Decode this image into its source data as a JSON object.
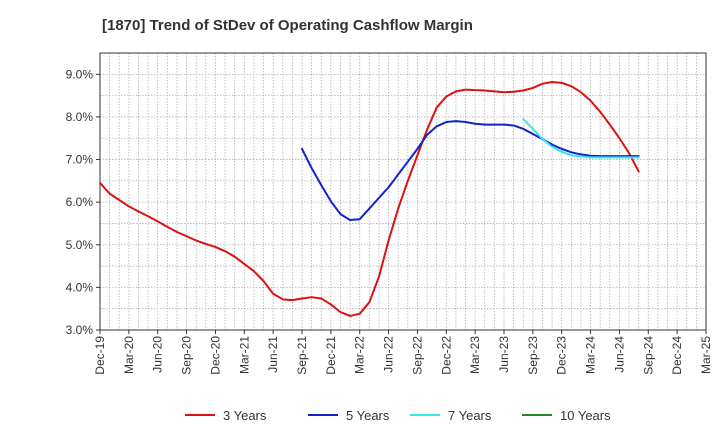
{
  "chart_data": {
    "type": "line",
    "title": "[1870]  Trend of StDev of Operating Cashflow Margin",
    "xlabel": "",
    "ylabel": "",
    "y_ticks": [
      "3.0%",
      "4.0%",
      "5.0%",
      "6.0%",
      "7.0%",
      "8.0%",
      "9.0%"
    ],
    "ylim": [
      3.0,
      9.5
    ],
    "x_ticks": [
      "Dec-19",
      "Mar-20",
      "Jun-20",
      "Sep-20",
      "Dec-20",
      "Mar-21",
      "Jun-21",
      "Sep-21",
      "Dec-21",
      "Mar-22",
      "Jun-22",
      "Sep-22",
      "Dec-22",
      "Mar-23",
      "Jun-23",
      "Sep-23",
      "Dec-23",
      "Mar-24",
      "Jun-24",
      "Sep-24",
      "Dec-24",
      "Mar-25"
    ],
    "x_start": "Dec-19",
    "grid": true,
    "legend_position": "bottom",
    "series": [
      {
        "name": "3 Years",
        "color": "#dd1111",
        "points": [
          [
            "Dec-19",
            6.45
          ],
          [
            "Jan-20",
            6.2
          ],
          [
            "Feb-20",
            6.05
          ],
          [
            "Mar-20",
            5.9
          ],
          [
            "Apr-20",
            5.78
          ],
          [
            "May-20",
            5.67
          ],
          [
            "Jun-20",
            5.55
          ],
          [
            "Jul-20",
            5.42
          ],
          [
            "Aug-20",
            5.3
          ],
          [
            "Sep-20",
            5.2
          ],
          [
            "Oct-20",
            5.1
          ],
          [
            "Nov-20",
            5.02
          ],
          [
            "Dec-20",
            4.95
          ],
          [
            "Jan-21",
            4.85
          ],
          [
            "Feb-21",
            4.72
          ],
          [
            "Mar-21",
            4.55
          ],
          [
            "Apr-21",
            4.38
          ],
          [
            "May-21",
            4.15
          ],
          [
            "Jun-21",
            3.85
          ],
          [
            "Jul-21",
            3.72
          ],
          [
            "Aug-21",
            3.7
          ],
          [
            "Sep-21",
            3.74
          ],
          [
            "Oct-21",
            3.77
          ],
          [
            "Nov-21",
            3.74
          ],
          [
            "Dec-21",
            3.6
          ],
          [
            "Jan-22",
            3.42
          ],
          [
            "Feb-22",
            3.33
          ],
          [
            "Mar-22",
            3.38
          ],
          [
            "Apr-22",
            3.65
          ],
          [
            "May-22",
            4.25
          ],
          [
            "Jun-22",
            5.1
          ],
          [
            "Jul-22",
            5.85
          ],
          [
            "Aug-22",
            6.5
          ],
          [
            "Sep-22",
            7.1
          ],
          [
            "Oct-22",
            7.7
          ],
          [
            "Nov-22",
            8.22
          ],
          [
            "Dec-22",
            8.48
          ],
          [
            "Jan-23",
            8.6
          ],
          [
            "Feb-23",
            8.64
          ],
          [
            "Mar-23",
            8.63
          ],
          [
            "Apr-23",
            8.62
          ],
          [
            "May-23",
            8.6
          ],
          [
            "Jun-23",
            8.58
          ],
          [
            "Jul-23",
            8.59
          ],
          [
            "Aug-23",
            8.62
          ],
          [
            "Sep-23",
            8.68
          ],
          [
            "Oct-23",
            8.78
          ],
          [
            "Nov-23",
            8.82
          ],
          [
            "Dec-23",
            8.8
          ],
          [
            "Jan-24",
            8.72
          ],
          [
            "Feb-24",
            8.58
          ],
          [
            "Mar-24",
            8.38
          ],
          [
            "Apr-24",
            8.12
          ],
          [
            "May-24",
            7.82
          ],
          [
            "Jun-24",
            7.5
          ],
          [
            "Jul-24",
            7.15
          ],
          [
            "Aug-24",
            6.72
          ]
        ]
      },
      {
        "name": "5 Years",
        "color": "#1122cc",
        "points": [
          [
            "Sep-21",
            7.25
          ],
          [
            "Oct-21",
            6.8
          ],
          [
            "Nov-21",
            6.4
          ],
          [
            "Dec-21",
            6.02
          ],
          [
            "Jan-22",
            5.72
          ],
          [
            "Feb-22",
            5.58
          ],
          [
            "Mar-22",
            5.6
          ],
          [
            "Apr-22",
            5.85
          ],
          [
            "May-22",
            6.1
          ],
          [
            "Jun-22",
            6.35
          ],
          [
            "Jul-22",
            6.65
          ],
          [
            "Aug-22",
            6.95
          ],
          [
            "Sep-22",
            7.25
          ],
          [
            "Oct-22",
            7.58
          ],
          [
            "Nov-22",
            7.78
          ],
          [
            "Dec-22",
            7.88
          ],
          [
            "Jan-23",
            7.9
          ],
          [
            "Feb-23",
            7.88
          ],
          [
            "Mar-23",
            7.84
          ],
          [
            "Apr-23",
            7.82
          ],
          [
            "May-23",
            7.82
          ],
          [
            "Jun-23",
            7.82
          ],
          [
            "Jul-23",
            7.8
          ],
          [
            "Aug-23",
            7.72
          ],
          [
            "Sep-23",
            7.6
          ],
          [
            "Oct-23",
            7.48
          ],
          [
            "Nov-23",
            7.35
          ],
          [
            "Dec-23",
            7.25
          ],
          [
            "Jan-24",
            7.17
          ],
          [
            "Feb-24",
            7.12
          ],
          [
            "Mar-24",
            7.09
          ],
          [
            "Apr-24",
            7.08
          ],
          [
            "May-24",
            7.08
          ],
          [
            "Jun-24",
            7.08
          ],
          [
            "Jul-24",
            7.08
          ],
          [
            "Aug-24",
            7.08
          ]
        ]
      },
      {
        "name": "7 Years",
        "color": "#33e5ee",
        "points": [
          [
            "Aug-23",
            7.95
          ],
          [
            "Sep-23",
            7.72
          ],
          [
            "Oct-23",
            7.48
          ],
          [
            "Nov-23",
            7.3
          ],
          [
            "Dec-23",
            7.18
          ],
          [
            "Jan-24",
            7.1
          ],
          [
            "Feb-24",
            7.07
          ],
          [
            "Mar-24",
            7.05
          ],
          [
            "Apr-24",
            7.05
          ],
          [
            "May-24",
            7.05
          ],
          [
            "Jun-24",
            7.05
          ],
          [
            "Jul-24",
            7.05
          ],
          [
            "Aug-24",
            7.05
          ]
        ]
      },
      {
        "name": "10 Years",
        "color": "#228822",
        "points": []
      }
    ]
  }
}
